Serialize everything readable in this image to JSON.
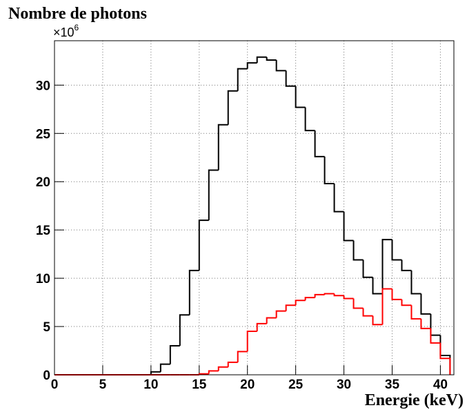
{
  "chart_data": {
    "type": "histogram",
    "title": "Nombre de photons",
    "y_multiplier": {
      "base": "×10",
      "exponent": "6"
    },
    "x_label": "Energie (keV)",
    "bins": [
      0,
      1,
      2,
      3,
      4,
      5,
      6,
      7,
      8,
      9,
      10,
      11,
      12,
      13,
      14,
      15,
      16,
      17,
      18,
      19,
      20,
      21,
      22,
      23,
      24,
      25,
      26,
      27,
      28,
      29,
      30,
      31,
      32,
      33,
      34,
      35,
      36,
      37,
      38,
      39,
      40,
      41
    ],
    "series": [
      {
        "color": "#000000",
        "values": [
          0,
          0,
          0,
          0,
          0,
          0,
          0,
          0,
          0,
          0,
          0.3,
          1.1,
          3.0,
          6.2,
          10.8,
          16.0,
          21.2,
          25.9,
          29.4,
          31.7,
          32.3,
          32.9,
          32.6,
          31.5,
          29.9,
          27.7,
          25.3,
          22.6,
          19.8,
          16.9,
          13.9,
          11.9,
          10.1,
          8.4,
          14.0,
          11.9,
          10.8,
          8.4,
          6.3,
          4.1,
          2.0
        ]
      },
      {
        "color": "#ff0000",
        "values": [
          0,
          0,
          0,
          0,
          0,
          0,
          0,
          0,
          0,
          0,
          0,
          0,
          0,
          0,
          0,
          0.1,
          0.4,
          0.8,
          1.3,
          2.4,
          4.5,
          5.3,
          5.9,
          6.6,
          7.2,
          7.7,
          8.0,
          8.3,
          8.4,
          8.2,
          7.9,
          6.9,
          6.1,
          5.2,
          8.9,
          7.8,
          7.2,
          5.8,
          4.8,
          3.3,
          1.7
        ]
      }
    ],
    "xlim": [
      0,
      41.4
    ],
    "ylim": [
      0,
      34.6
    ],
    "xticks": [
      0,
      5,
      10,
      15,
      20,
      25,
      30,
      35,
      40
    ],
    "yticks": [
      0,
      5,
      10,
      15,
      20,
      25,
      30
    ],
    "grid": true
  }
}
